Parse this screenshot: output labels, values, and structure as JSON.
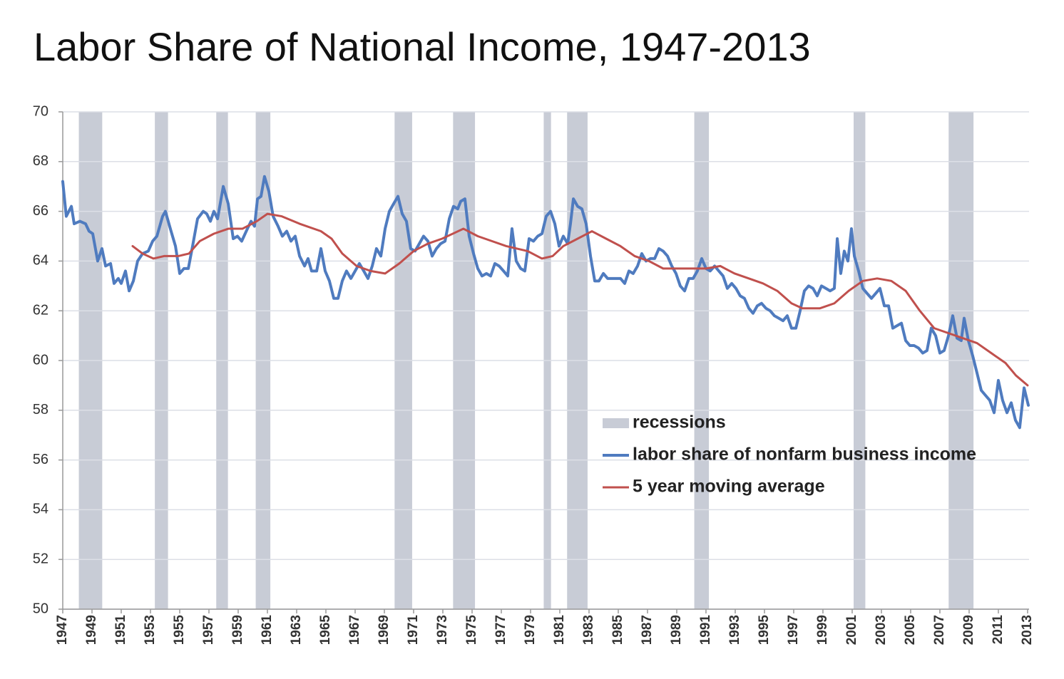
{
  "chart_data": {
    "type": "line",
    "title": "Labor Share of National Income, 1947-2013",
    "xlim": [
      1947,
      2013.1
    ],
    "ylim": [
      50,
      70
    ],
    "yticks": [
      50,
      52,
      54,
      56,
      58,
      60,
      62,
      64,
      66,
      68,
      70
    ],
    "xticks": [
      1947,
      1949,
      1951,
      1953,
      1955,
      1957,
      1959,
      1961,
      1963,
      1965,
      1967,
      1969,
      1971,
      1973,
      1975,
      1977,
      1979,
      1981,
      1983,
      1985,
      1987,
      1989,
      1991,
      1993,
      1995,
      1997,
      1999,
      2001,
      2003,
      2005,
      2007,
      2009,
      2011,
      2013
    ],
    "grid": true,
    "legend": "lower right",
    "recessions": {
      "name": "recessions",
      "color": "#c8ccd6",
      "ranges": [
        [
          1948.1,
          1949.7
        ],
        [
          1953.3,
          1954.2
        ],
        [
          1957.5,
          1958.3
        ],
        [
          1960.2,
          1961.2
        ],
        [
          1969.7,
          1970.9
        ],
        [
          1973.7,
          1975.2
        ],
        [
          1979.9,
          1980.4
        ],
        [
          1981.5,
          1982.9
        ],
        [
          1990.2,
          1991.2
        ],
        [
          2001.1,
          2001.9
        ],
        [
          2007.6,
          2009.3
        ]
      ]
    },
    "series": [
      {
        "name": "labor share of nonfarm business income",
        "color": "#4f7bbf",
        "width": 4,
        "x": [
          1947.0,
          1947.24,
          1947.59,
          1947.78,
          1948.17,
          1948.56,
          1948.8,
          1949.05,
          1949.39,
          1949.68,
          1949.93,
          1950.27,
          1950.51,
          1950.8,
          1951.0,
          1951.29,
          1951.54,
          1951.83,
          1952.12,
          1952.46,
          1952.85,
          1953.15,
          1953.44,
          1953.83,
          1954.02,
          1954.41,
          1954.71,
          1955.0,
          1955.29,
          1955.59,
          1955.88,
          1956.22,
          1956.61,
          1956.85,
          1957.1,
          1957.34,
          1957.59,
          1957.98,
          1958.32,
          1958.66,
          1958.95,
          1959.24,
          1959.63,
          1959.88,
          1960.12,
          1960.32,
          1960.56,
          1960.8,
          1961.1,
          1961.39,
          1961.73,
          1962.02,
          1962.32,
          1962.61,
          1962.9,
          1963.2,
          1963.54,
          1963.78,
          1964.02,
          1964.37,
          1964.66,
          1964.95,
          1965.24,
          1965.54,
          1965.83,
          1966.12,
          1966.41,
          1966.71,
          1967.0,
          1967.29,
          1967.59,
          1967.88,
          1968.17,
          1968.46,
          1968.76,
          1969.05,
          1969.34,
          1969.63,
          1969.93,
          1970.22,
          1970.51,
          1970.8,
          1971.1,
          1971.39,
          1971.68,
          1971.98,
          1972.27,
          1972.56,
          1972.85,
          1973.15,
          1973.44,
          1973.73,
          1974.02,
          1974.22,
          1974.51,
          1974.8,
          1975.1,
          1975.39,
          1975.68,
          1975.98,
          1976.27,
          1976.56,
          1976.85,
          1977.15,
          1977.44,
          1977.73,
          1978.02,
          1978.32,
          1978.61,
          1978.9,
          1979.2,
          1979.49,
          1979.78,
          1980.07,
          1980.37,
          1980.66,
          1980.95,
          1981.24,
          1981.54,
          1981.73,
          1981.93,
          1982.22,
          1982.51,
          1982.8,
          1983.1,
          1983.39,
          1983.68,
          1983.98,
          1984.27,
          1984.56,
          1984.85,
          1985.15,
          1985.44,
          1985.73,
          1986.02,
          1986.32,
          1986.61,
          1986.9,
          1987.2,
          1987.49,
          1987.78,
          1988.07,
          1988.37,
          1988.66,
          1988.95,
          1989.24,
          1989.54,
          1989.83,
          1990.12,
          1990.41,
          1990.71,
          1991.0,
          1991.29,
          1991.59,
          1991.88,
          1992.17,
          1992.46,
          1992.76,
          1993.05,
          1993.34,
          1993.63,
          1993.93,
          1994.22,
          1994.51,
          1994.8,
          1995.1,
          1995.39,
          1995.68,
          1995.98,
          1996.27,
          1996.56,
          1996.85,
          1997.15,
          1997.44,
          1997.73,
          1998.02,
          1998.32,
          1998.61,
          1998.9,
          1999.2,
          1999.49,
          1999.78,
          1999.98,
          2000.22,
          2000.46,
          2000.71,
          2000.95,
          2001.15,
          2001.44,
          2001.73,
          2002.02,
          2002.32,
          2002.61,
          2002.9,
          2003.2,
          2003.49,
          2003.78,
          2004.07,
          2004.37,
          2004.66,
          2004.95,
          2005.24,
          2005.54,
          2005.83,
          2006.12,
          2006.41,
          2006.71,
          2007.0,
          2007.29,
          2007.59,
          2007.88,
          2008.17,
          2008.46,
          2008.66,
          2008.95,
          2009.24,
          2009.54,
          2009.83,
          2010.12,
          2010.41,
          2010.71,
          2011.0,
          2011.29,
          2011.59,
          2011.88,
          2012.17,
          2012.46,
          2012.76,
          2013.05
        ],
        "values": [
          67.2,
          65.8,
          66.2,
          65.5,
          65.6,
          65.5,
          65.2,
          65.1,
          64.0,
          64.5,
          63.8,
          63.9,
          63.1,
          63.3,
          63.1,
          63.6,
          62.8,
          63.2,
          64.0,
          64.3,
          64.4,
          64.8,
          65.0,
          65.8,
          66.0,
          65.2,
          64.6,
          63.5,
          63.7,
          63.7,
          64.6,
          65.7,
          66.0,
          65.9,
          65.6,
          66.0,
          65.7,
          67.0,
          66.3,
          64.9,
          65.0,
          64.8,
          65.3,
          65.6,
          65.4,
          66.5,
          66.6,
          67.4,
          66.8,
          65.8,
          65.4,
          65.0,
          65.2,
          64.8,
          65.0,
          64.2,
          63.8,
          64.1,
          63.6,
          63.6,
          64.5,
          63.6,
          63.2,
          62.5,
          62.5,
          63.2,
          63.6,
          63.3,
          63.6,
          63.9,
          63.6,
          63.3,
          63.8,
          64.5,
          64.2,
          65.3,
          66.0,
          66.3,
          66.6,
          65.9,
          65.6,
          64.5,
          64.4,
          64.7,
          65.0,
          64.8,
          64.2,
          64.5,
          64.7,
          64.8,
          65.7,
          66.2,
          66.1,
          66.4,
          66.5,
          65.0,
          64.3,
          63.7,
          63.4,
          63.5,
          63.4,
          63.9,
          63.8,
          63.6,
          63.4,
          65.3,
          64.0,
          63.7,
          63.6,
          64.9,
          64.8,
          65.0,
          65.1,
          65.8,
          66.0,
          65.5,
          64.6,
          65.0,
          64.7,
          65.5,
          66.5,
          66.2,
          66.1,
          65.5,
          64.2,
          63.2,
          63.2,
          63.5,
          63.3,
          63.3,
          63.3,
          63.3,
          63.1,
          63.6,
          63.5,
          63.8,
          64.3,
          64.0,
          64.1,
          64.1,
          64.5,
          64.4,
          64.2,
          63.8,
          63.5,
          63.0,
          62.8,
          63.3,
          63.3,
          63.6,
          64.1,
          63.7,
          63.6,
          63.8,
          63.6,
          63.4,
          62.9,
          63.1,
          62.9,
          62.6,
          62.5,
          62.1,
          61.9,
          62.2,
          62.3,
          62.1,
          62.0,
          61.8,
          61.7,
          61.6,
          61.8,
          61.3,
          61.3,
          62.0,
          62.8,
          63.0,
          62.9,
          62.6,
          63.0,
          62.9,
          62.8,
          62.9,
          64.9,
          63.5,
          64.4,
          64.0,
          65.3,
          64.2,
          63.6,
          62.9,
          62.7,
          62.5,
          62.7,
          62.9,
          62.2,
          62.2,
          61.3,
          61.4,
          61.5,
          60.8,
          60.6,
          60.6,
          60.5,
          60.3,
          60.4,
          61.3,
          61.0,
          60.3,
          60.4,
          61.0,
          61.8,
          60.9,
          60.8,
          61.7,
          60.8,
          60.2,
          59.5,
          58.8,
          58.6,
          58.4,
          57.9,
          59.2,
          58.4,
          57.9,
          58.3,
          57.6,
          57.3,
          58.9,
          58.2
        ]
      },
      {
        "name": "5 year moving average",
        "color": "#c0504d",
        "width": 3,
        "x": [
          1951.78,
          1952.46,
          1953.2,
          1953.93,
          1954.9,
          1955.63,
          1956.37,
          1957.34,
          1958.32,
          1959.29,
          1960.27,
          1961.0,
          1961.98,
          1963.2,
          1964.66,
          1965.39,
          1966.12,
          1967.1,
          1968.07,
          1969.05,
          1970.02,
          1971.0,
          1971.98,
          1972.95,
          1974.41,
          1975.39,
          1976.37,
          1977.34,
          1978.8,
          1979.78,
          1980.51,
          1981.24,
          1982.22,
          1983.2,
          1984.17,
          1985.15,
          1986.12,
          1987.1,
          1988.07,
          1989.54,
          1991.0,
          1991.98,
          1992.95,
          1993.93,
          1994.9,
          1995.88,
          1996.85,
          1997.59,
          1998.8,
          1999.78,
          2000.76,
          2001.73,
          2002.71,
          2003.68,
          2004.66,
          2005.63,
          2006.61,
          2007.59,
          2008.56,
          2009.54,
          2010.51,
          2011.49,
          2012.2,
          2013.0
        ],
        "values": [
          64.6,
          64.3,
          64.1,
          64.2,
          64.2,
          64.3,
          64.8,
          65.1,
          65.3,
          65.3,
          65.6,
          65.9,
          65.8,
          65.5,
          65.2,
          64.9,
          64.3,
          63.8,
          63.6,
          63.5,
          63.9,
          64.4,
          64.7,
          64.9,
          65.3,
          65.0,
          64.8,
          64.6,
          64.4,
          64.1,
          64.2,
          64.6,
          64.9,
          65.2,
          64.9,
          64.6,
          64.2,
          64.0,
          63.7,
          63.7,
          63.7,
          63.8,
          63.5,
          63.3,
          63.1,
          62.8,
          62.3,
          62.1,
          62.1,
          62.3,
          62.8,
          63.2,
          63.3,
          63.2,
          62.8,
          62.0,
          61.3,
          61.1,
          60.9,
          60.7,
          60.3,
          59.9,
          59.4,
          59.0
        ]
      }
    ]
  }
}
